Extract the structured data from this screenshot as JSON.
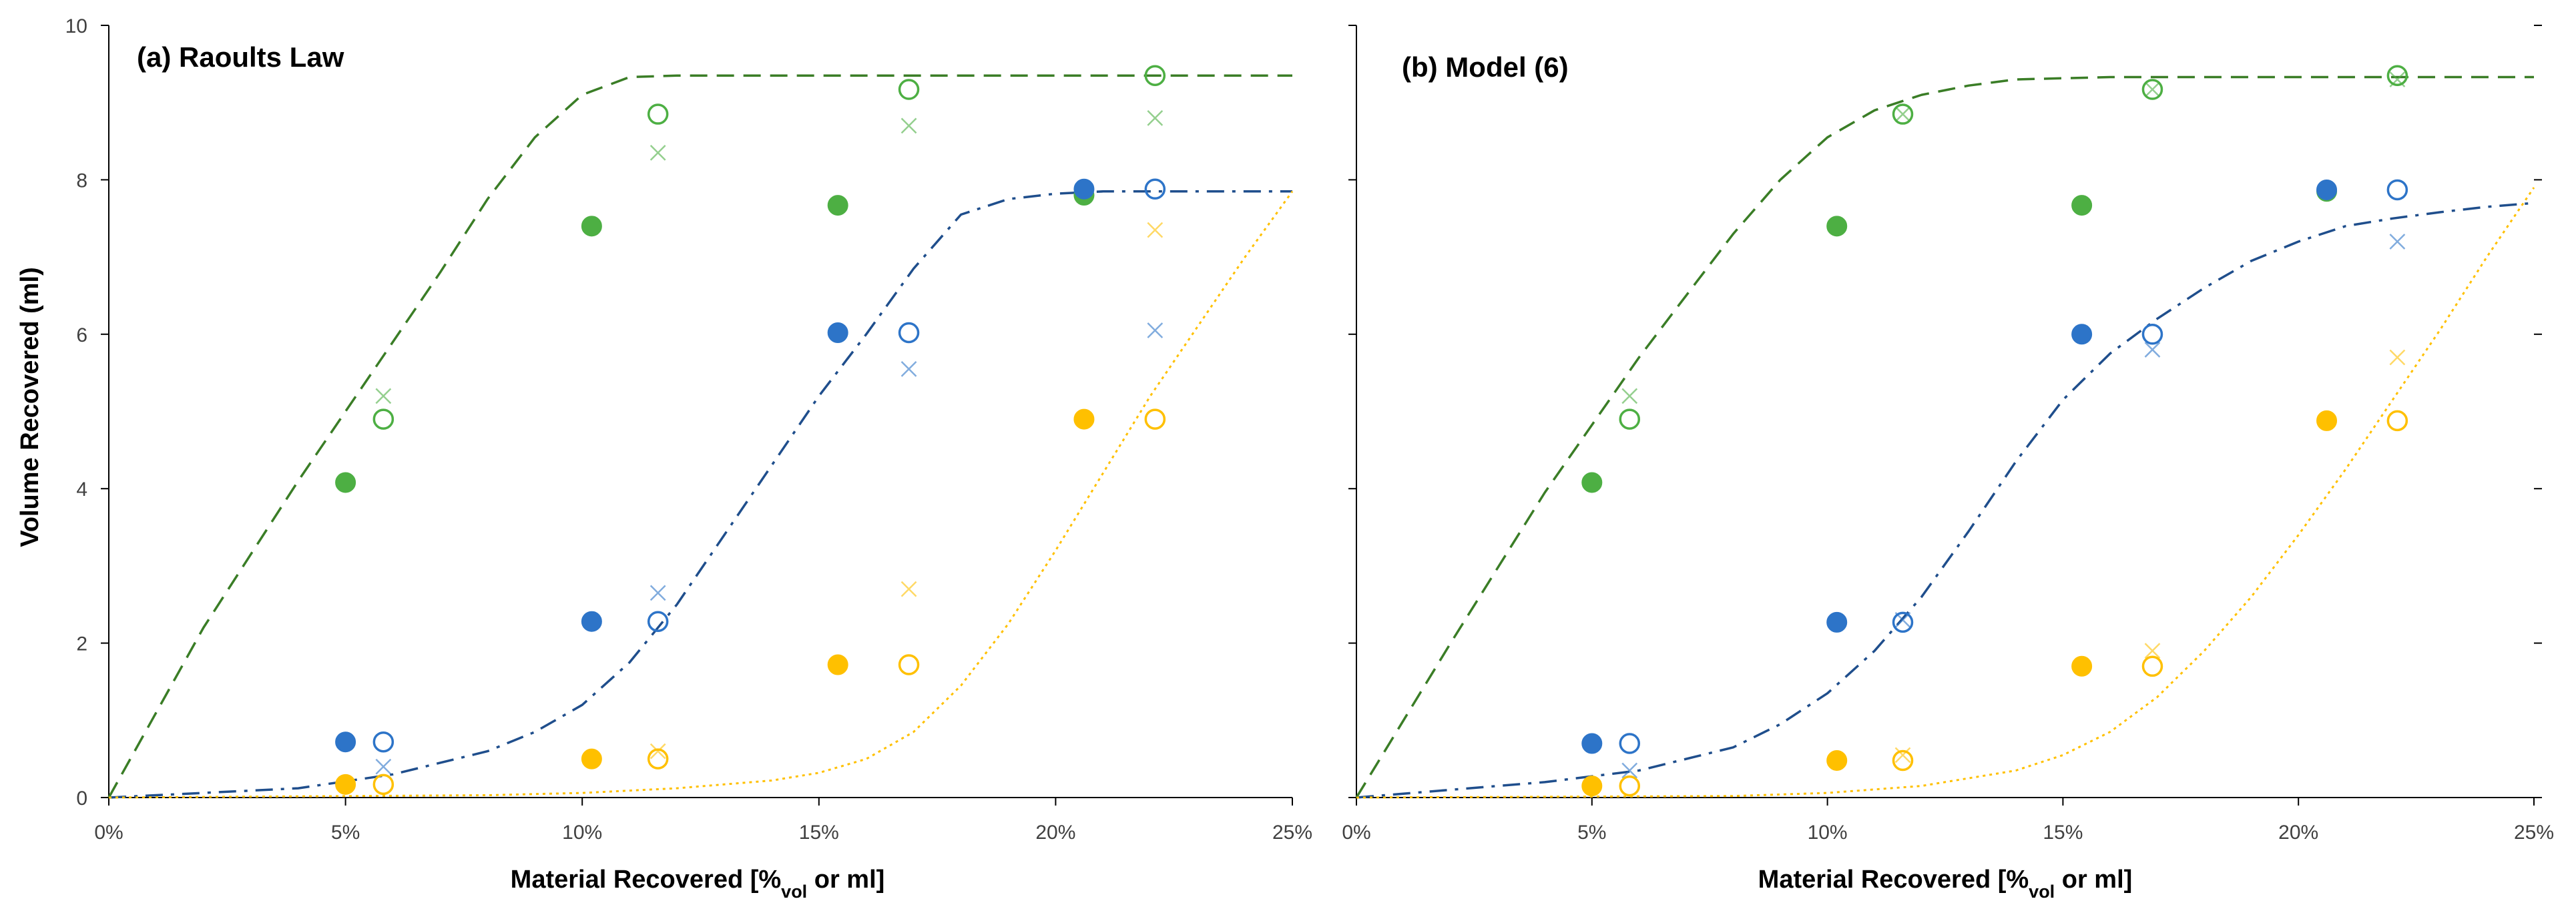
{
  "colors": {
    "green": "#4DAF43",
    "blue": "#2D74C8",
    "yellow": "#FFC000",
    "green_curve": "#3A7D26",
    "blue_curve": "#1F4E8C",
    "yellow_curve": "#FFC000",
    "axis": "#000000"
  },
  "chart_data": [
    {
      "type": "scatter",
      "title": "(a) Raoults Law",
      "xlabel": "Material Recovered [%vol or ml]",
      "xlabel_parts": {
        "pre": "Material Recovered [%",
        "sub": "vol",
        "post": " or ml]"
      },
      "ylabel": "Volume Recovered (ml)",
      "xlim": [
        0,
        25
      ],
      "ylim": [
        0,
        10
      ],
      "x_ticks": [
        "0%",
        "5%",
        "10%",
        "15%",
        "20%",
        "25%"
      ],
      "y_ticks": [
        "0",
        "2",
        "4",
        "6",
        "8",
        "10"
      ],
      "series": [
        {
          "name": "green filled",
          "color": "green",
          "marker": "filled",
          "x": [
            5.0,
            10.2,
            15.4,
            20.6
          ],
          "y": [
            4.08,
            7.4,
            7.67,
            7.8
          ]
        },
        {
          "name": "green open",
          "color": "green",
          "marker": "open",
          "x": [
            5.8,
            11.6,
            16.9,
            22.1
          ],
          "y": [
            4.9,
            8.85,
            9.17,
            9.35
          ]
        },
        {
          "name": "green model",
          "color": "green",
          "marker": "cross",
          "x": [
            5.8,
            11.6,
            16.9,
            22.1
          ],
          "y": [
            5.2,
            8.35,
            8.7,
            8.8
          ]
        },
        {
          "name": "blue filled",
          "color": "blue",
          "marker": "filled",
          "x": [
            5.0,
            10.2,
            15.4,
            20.6
          ],
          "y": [
            0.72,
            2.28,
            6.02,
            7.88
          ]
        },
        {
          "name": "blue open",
          "color": "blue",
          "marker": "open",
          "x": [
            5.8,
            11.6,
            16.9,
            22.1
          ],
          "y": [
            0.72,
            2.28,
            6.02,
            7.88
          ]
        },
        {
          "name": "blue model",
          "color": "blue",
          "marker": "cross",
          "x": [
            5.8,
            11.6,
            16.9,
            22.1
          ],
          "y": [
            0.4,
            2.65,
            5.55,
            6.05
          ]
        },
        {
          "name": "yellow filled",
          "color": "yellow",
          "marker": "filled",
          "x": [
            5.0,
            10.2,
            15.4,
            20.6
          ],
          "y": [
            0.17,
            0.5,
            1.72,
            4.9
          ]
        },
        {
          "name": "yellow open",
          "color": "yellow",
          "marker": "open",
          "x": [
            5.8,
            11.6,
            16.9,
            22.1
          ],
          "y": [
            0.17,
            0.5,
            1.72,
            4.9
          ]
        },
        {
          "name": "yellow model",
          "color": "yellow",
          "marker": "cross",
          "x": [
            11.6,
            16.9,
            22.1
          ],
          "y": [
            0.6,
            2.7,
            7.35
          ]
        }
      ],
      "curves": [
        {
          "name": "green curve",
          "color": "green_curve",
          "dash": "dash",
          "x": [
            0,
            2,
            4,
            6,
            7,
            8,
            9,
            10,
            11,
            12,
            14,
            18,
            22,
            25
          ],
          "y": [
            0,
            2.2,
            4.1,
            5.9,
            6.8,
            7.75,
            8.55,
            9.1,
            9.33,
            9.35,
            9.35,
            9.35,
            9.35,
            9.35
          ]
        },
        {
          "name": "blue curve",
          "color": "blue_curve",
          "dash": "dashdot",
          "x": [
            0,
            4,
            6,
            8,
            9,
            10,
            11,
            12,
            13,
            14,
            15,
            16,
            17,
            18,
            19,
            20,
            21,
            22,
            25
          ],
          "y": [
            0,
            0.12,
            0.3,
            0.6,
            0.85,
            1.2,
            1.75,
            2.5,
            3.4,
            4.3,
            5.2,
            6.0,
            6.85,
            7.55,
            7.75,
            7.82,
            7.85,
            7.85,
            7.85
          ]
        },
        {
          "name": "yellow curve",
          "color": "yellow_curve",
          "dash": "dot",
          "x": [
            0,
            8,
            10,
            12,
            14,
            15,
            16,
            17,
            18,
            19,
            20,
            21,
            22,
            23,
            24,
            25
          ],
          "y": [
            0,
            0.03,
            0.06,
            0.12,
            0.22,
            0.32,
            0.5,
            0.85,
            1.45,
            2.25,
            3.2,
            4.2,
            5.2,
            6.1,
            7.0,
            7.85
          ]
        }
      ]
    },
    {
      "type": "scatter",
      "title": "(b) Model (6)",
      "xlabel": "Material Recovered [%vol or ml]",
      "xlabel_parts": {
        "pre": "Material Recovered [%",
        "sub": "vol",
        "post": " or ml]"
      },
      "ylabel": "",
      "xlim": [
        0,
        25
      ],
      "ylim": [
        0,
        10
      ],
      "x_ticks": [
        "0%",
        "5%",
        "10%",
        "15%",
        "20%",
        "25%"
      ],
      "y_ticks": [],
      "series": [
        {
          "name": "green filled",
          "color": "green",
          "marker": "filled",
          "x": [
            5.0,
            10.2,
            15.4,
            20.6
          ],
          "y": [
            4.08,
            7.4,
            7.67,
            7.85
          ]
        },
        {
          "name": "green open",
          "color": "green",
          "marker": "open",
          "x": [
            5.8,
            11.6,
            16.9,
            22.1
          ],
          "y": [
            4.9,
            8.85,
            9.17,
            9.35
          ]
        },
        {
          "name": "green model",
          "color": "green",
          "marker": "cross",
          "x": [
            5.8,
            11.6,
            16.9,
            22.1
          ],
          "y": [
            5.2,
            8.85,
            9.17,
            9.3
          ]
        },
        {
          "name": "blue filled",
          "color": "blue",
          "marker": "filled",
          "x": [
            5.0,
            10.2,
            15.4,
            20.6
          ],
          "y": [
            0.7,
            2.27,
            6.0,
            7.87
          ]
        },
        {
          "name": "blue open",
          "color": "blue",
          "marker": "open",
          "x": [
            5.8,
            11.6,
            16.9,
            22.1
          ],
          "y": [
            0.7,
            2.27,
            6.0,
            7.87
          ]
        },
        {
          "name": "blue model",
          "color": "blue",
          "marker": "cross",
          "x": [
            5.8,
            11.6,
            16.9,
            22.1
          ],
          "y": [
            0.35,
            2.3,
            5.8,
            7.2
          ]
        },
        {
          "name": "yellow filled",
          "color": "yellow",
          "marker": "filled",
          "x": [
            5.0,
            10.2,
            15.4,
            20.6
          ],
          "y": [
            0.15,
            0.48,
            1.7,
            4.88
          ]
        },
        {
          "name": "yellow open",
          "color": "yellow",
          "marker": "open",
          "x": [
            5.8,
            11.6,
            16.9,
            22.1
          ],
          "y": [
            0.15,
            0.48,
            1.7,
            4.88
          ]
        },
        {
          "name": "yellow model",
          "color": "yellow",
          "marker": "cross",
          "x": [
            11.6,
            16.9,
            22.1
          ],
          "y": [
            0.55,
            1.9,
            5.7
          ]
        }
      ],
      "curves": [
        {
          "name": "green curve",
          "color": "green_curve",
          "dash": "dash",
          "x": [
            0,
            2,
            4,
            6,
            7,
            8,
            9,
            10,
            11,
            12,
            13,
            14,
            16,
            18,
            20,
            25
          ],
          "y": [
            0,
            2.0,
            3.95,
            5.7,
            6.5,
            7.3,
            8.0,
            8.55,
            8.9,
            9.1,
            9.22,
            9.3,
            9.33,
            9.33,
            9.33,
            9.33
          ]
        },
        {
          "name": "blue curve",
          "color": "blue_curve",
          "dash": "dashdot",
          "x": [
            0,
            2,
            4,
            6,
            8,
            9,
            10,
            11,
            12,
            13,
            14,
            15,
            16,
            17,
            18,
            19,
            20,
            21,
            22,
            23,
            24,
            25
          ],
          "y": [
            0,
            0.1,
            0.2,
            0.35,
            0.65,
            0.95,
            1.35,
            1.9,
            2.6,
            3.45,
            4.35,
            5.15,
            5.75,
            6.2,
            6.6,
            6.95,
            7.2,
            7.4,
            7.5,
            7.58,
            7.65,
            7.7
          ]
        },
        {
          "name": "yellow curve",
          "color": "yellow_curve",
          "dash": "dot",
          "x": [
            0,
            8,
            10,
            12,
            14,
            15,
            16,
            17,
            18,
            19,
            20,
            21,
            22,
            23,
            24,
            25
          ],
          "y": [
            0,
            0.02,
            0.06,
            0.15,
            0.35,
            0.55,
            0.85,
            1.3,
            1.9,
            2.6,
            3.4,
            4.25,
            5.15,
            6.05,
            7.0,
            7.9
          ]
        }
      ]
    }
  ]
}
